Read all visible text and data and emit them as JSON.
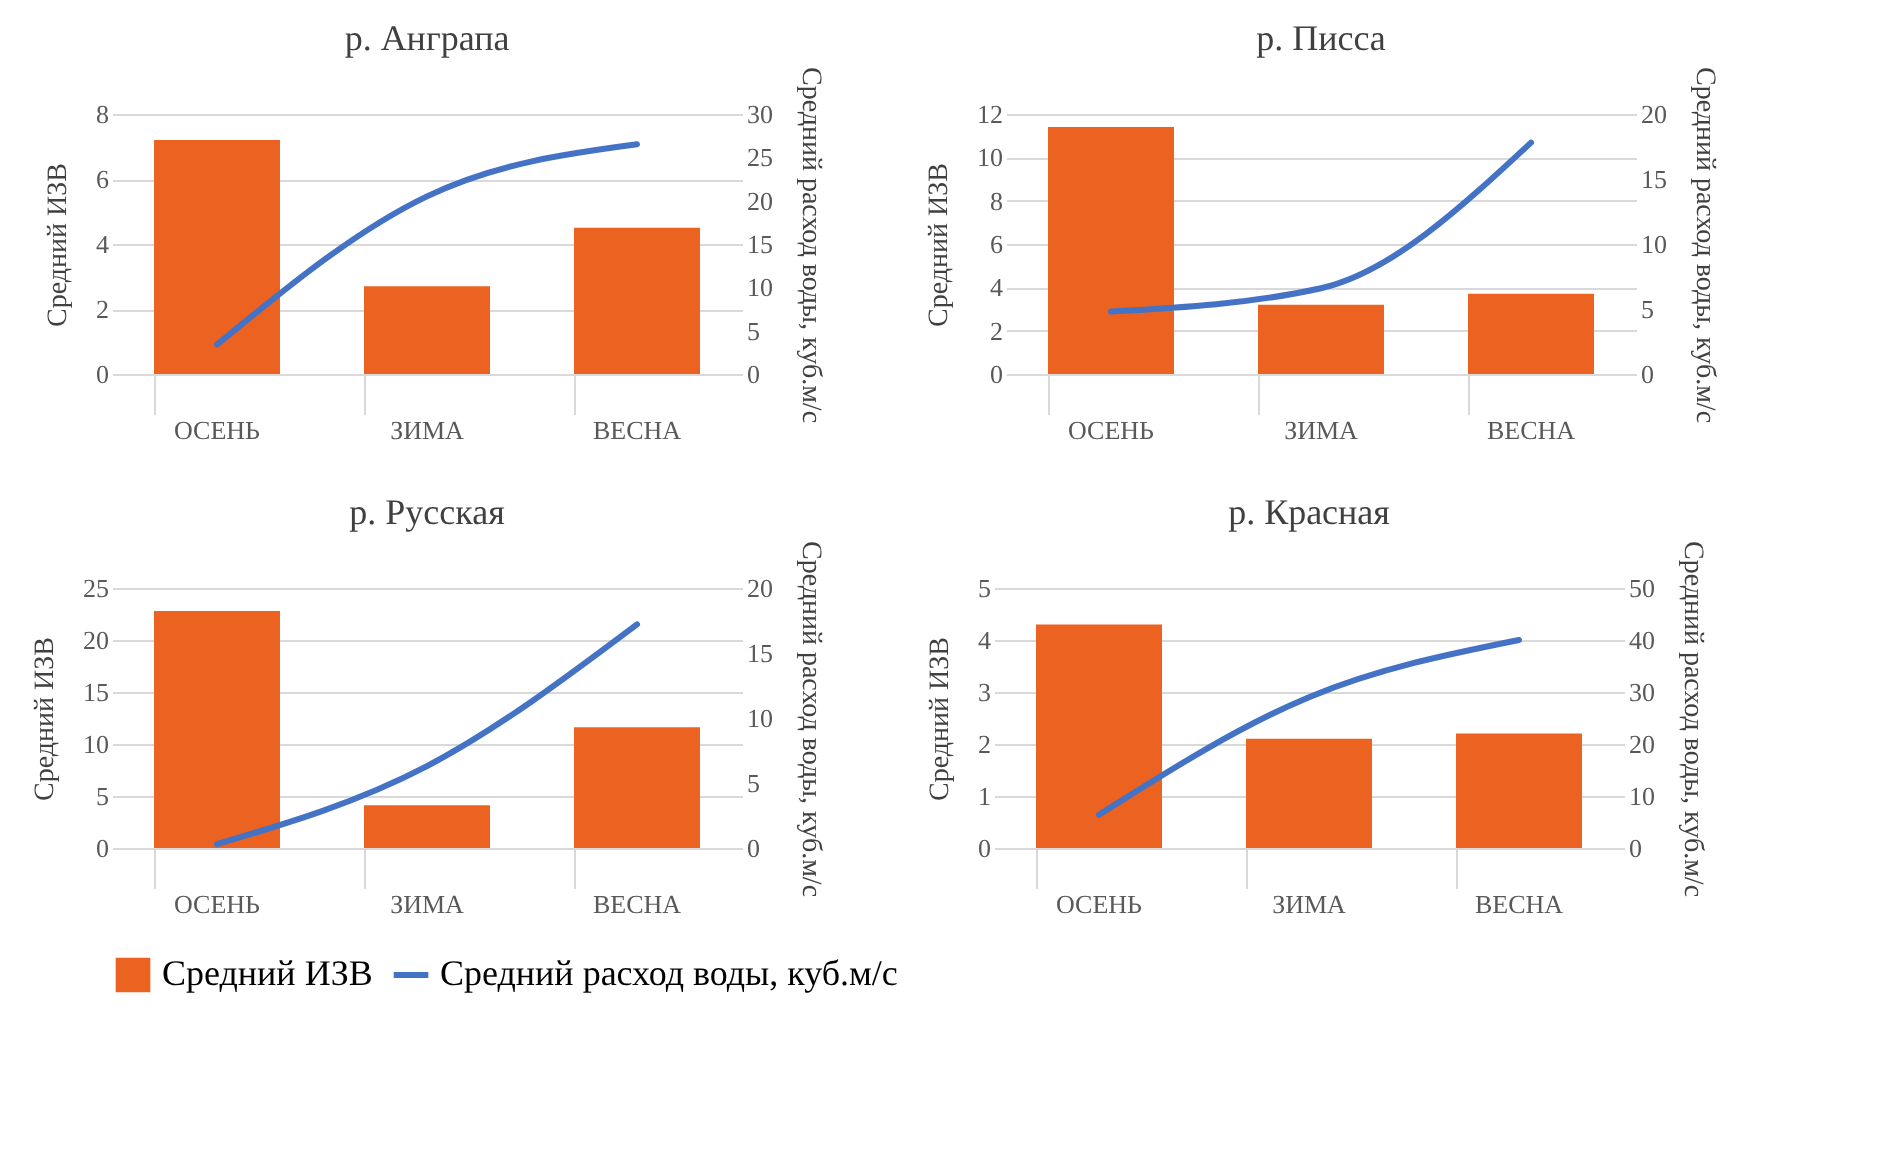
{
  "chart_data": [
    {
      "type": "bar",
      "title": "р. Анграпа",
      "categories": [
        "ОСЕНЬ",
        "ЗИМА",
        "ВЕСНА"
      ],
      "ylabel": "Средний ИЗВ",
      "y2label": "Средний расход воды, куб.м/с",
      "ylim": [
        0,
        8
      ],
      "yticks": [
        0,
        2,
        4,
        6,
        8
      ],
      "y2lim": [
        0,
        30
      ],
      "y2ticks": [
        0,
        5,
        10,
        15,
        20,
        25,
        30
      ],
      "grid": "y",
      "legend": "bottom",
      "series": [
        {
          "name": "Средний ИЗВ",
          "color": "#ec6321",
          "values": [
            7.2,
            2.7,
            4.5
          ]
        },
        {
          "name": "Средний расход воды, куб.м/с",
          "type": "line",
          "axis": "y2",
          "color": "#4472c4",
          "values": [
            3.4,
            20.5,
            26.5
          ]
        }
      ]
    },
    {
      "type": "bar",
      "title": "р. Писса",
      "categories": [
        "ОСЕНЬ",
        "ЗИМА",
        "ВЕСНА"
      ],
      "ylabel": "Средний ИЗВ",
      "y2label": "Средний расход воды, куб.м/с",
      "ylim": [
        0,
        12
      ],
      "yticks": [
        0,
        2,
        4,
        6,
        8,
        10,
        12
      ],
      "y2lim": [
        0,
        20
      ],
      "y2ticks": [
        0,
        5,
        10,
        15,
        20
      ],
      "grid": "y",
      "series": [
        {
          "color": "#ec6321",
          "values": [
            11.4,
            3.2,
            3.7
          ]
        },
        {
          "type": "line",
          "axis": "y2",
          "color": "#4472c4",
          "values": [
            4.8,
            6.6,
            17.8
          ]
        }
      ]
    },
    {
      "type": "bar",
      "title": "р. Русская",
      "categories": [
        "ОСЕНЬ",
        "ЗИМА",
        "ВЕСНА"
      ],
      "ylabel": "Средний ИЗВ",
      "y2label": "Средний расход воды, куб.м/с",
      "ylim": [
        0,
        25
      ],
      "yticks": [
        0,
        5,
        10,
        15,
        20,
        25
      ],
      "y2lim": [
        0,
        20
      ],
      "y2ticks": [
        0,
        5,
        10,
        15,
        20
      ],
      "grid": "y",
      "series": [
        {
          "color": "#ec6321",
          "values": [
            22.8,
            4.1,
            11.6
          ]
        },
        {
          "type": "line",
          "axis": "y2",
          "color": "#4472c4",
          "values": [
            0.3,
            6.3,
            17.2
          ]
        }
      ]
    },
    {
      "type": "bar",
      "title": "р. Красная",
      "categories": [
        "ОСЕНЬ",
        "ЗИМА",
        "ВЕСНА"
      ],
      "ylabel": "Средний ИЗВ",
      "y2label": "Средний расход воды, куб.м/с",
      "ylim": [
        0,
        5
      ],
      "yticks": [
        0,
        1,
        2,
        3,
        4,
        5
      ],
      "y2lim": [
        0,
        50
      ],
      "y2ticks": [
        0,
        10,
        20,
        30,
        40,
        50
      ],
      "grid": "y",
      "series": [
        {
          "color": "#ec6321",
          "values": [
            4.3,
            2.1,
            2.2
          ]
        },
        {
          "type": "line",
          "axis": "y2",
          "color": "#4472c4",
          "values": [
            6.4,
            29,
            40
          ]
        }
      ]
    }
  ]
}
